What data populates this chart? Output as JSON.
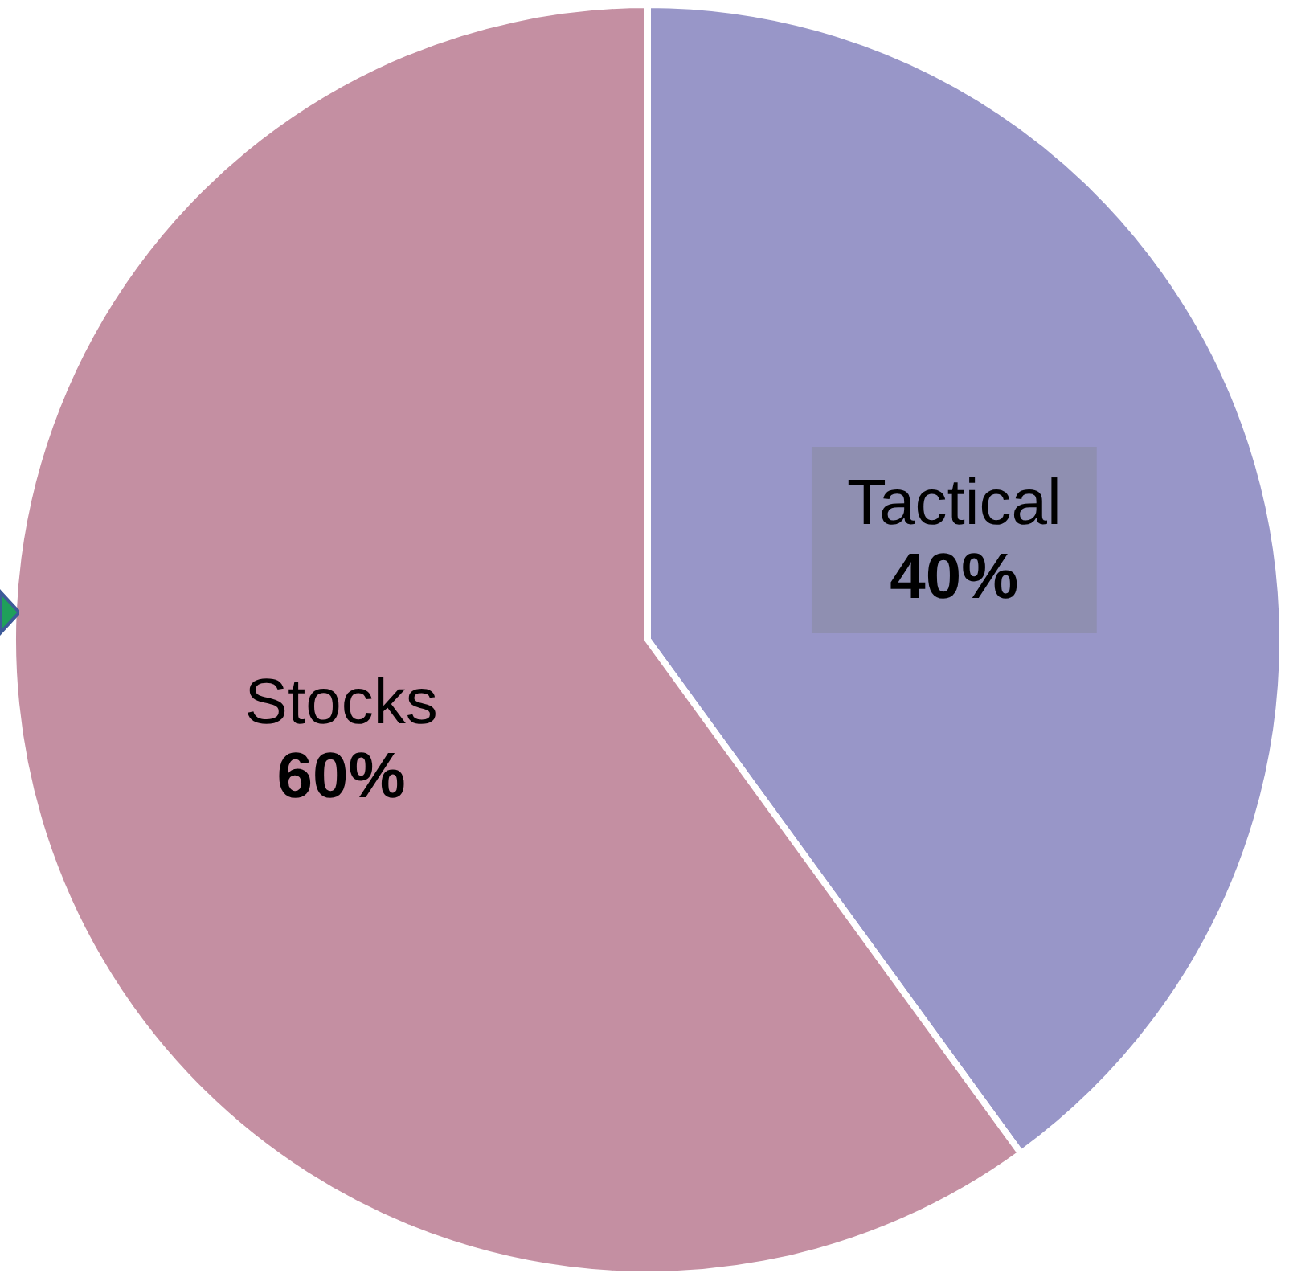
{
  "chart_data": {
    "type": "pie",
    "categories": [
      "Tactical",
      "Stocks"
    ],
    "values": [
      40,
      60
    ],
    "colors": [
      "#9896c8",
      "#c48fa2"
    ],
    "value_labels": [
      "40%",
      "60%"
    ],
    "legend": false
  }
}
